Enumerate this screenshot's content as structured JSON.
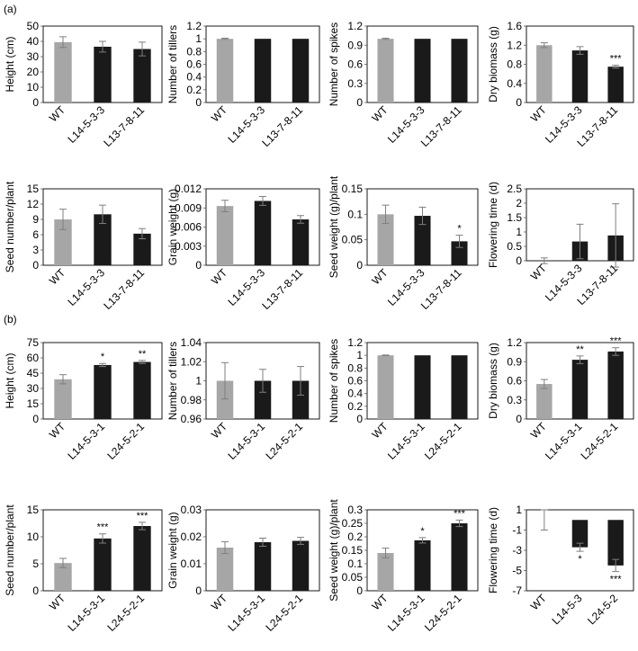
{
  "sections": [
    {
      "label": "(a)"
    },
    {
      "label": "(b)"
    }
  ],
  "colors": {
    "wt": "#a6a6a6",
    "line": "#1a1a1a",
    "axis": "#595959",
    "frame": "#000000",
    "error": "#7f7f7f"
  },
  "chart_data": [
    {
      "id": "a1",
      "type": "bar",
      "categories": [
        "WT",
        "L14-5-3-3",
        "L13-7-8-11"
      ],
      "values": [
        39.5,
        36.5,
        35
      ],
      "errors": [
        3.5,
        3.5,
        4.5
      ],
      "significance": [
        "",
        "",
        ""
      ],
      "ylabel": "Height (cm)",
      "ylim": [
        0,
        50
      ],
      "yticks": [
        "0",
        "10",
        "20",
        "30",
        "40",
        "50"
      ]
    },
    {
      "id": "a2",
      "type": "bar",
      "categories": [
        "WT",
        "L14-5-3-3",
        "L13-7-8-11"
      ],
      "values": [
        1,
        1,
        1
      ],
      "errors": [
        0.01,
        0,
        0
      ],
      "significance": [
        "",
        "",
        ""
      ],
      "ylabel": "Number of tillers",
      "ylim": [
        0,
        1.2
      ],
      "yticks": [
        "0",
        "0.2",
        "0.4",
        "0.6",
        "0.8",
        "1",
        "1.2"
      ]
    },
    {
      "id": "a3",
      "type": "bar",
      "categories": [
        "WT",
        "L14-5-3-3",
        "L13-7-8-11"
      ],
      "values": [
        1,
        1,
        1
      ],
      "errors": [
        0.01,
        0,
        0
      ],
      "significance": [
        "",
        "",
        ""
      ],
      "ylabel": "Number of spikes",
      "ylim": [
        0,
        1.2
      ],
      "yticks": [
        "0",
        "0.3",
        "0.6",
        "0.9",
        "1.2"
      ]
    },
    {
      "id": "a4",
      "type": "bar",
      "categories": [
        "WT",
        "L14-5-3-3",
        "L13-7-8-11"
      ],
      "values": [
        1.2,
        1.09,
        0.75
      ],
      "errors": [
        0.05,
        0.08,
        0.03
      ],
      "significance": [
        "",
        "",
        "***"
      ],
      "ylabel": "Dry biomass (g)",
      "ylim": [
        0,
        1.6
      ],
      "yticks": [
        "0",
        "0.4",
        "0.8",
        "1.2",
        "1.6"
      ]
    },
    {
      "id": "a5",
      "type": "bar",
      "categories": [
        "WT",
        "L14-5-3-3",
        "L13-7-8-11"
      ],
      "values": [
        9,
        10,
        6.2
      ],
      "errors": [
        2.0,
        1.8,
        1.0
      ],
      "significance": [
        "",
        "",
        ""
      ],
      "ylabel": "Seed number/plant",
      "ylim": [
        0,
        15
      ],
      "yticks": [
        "0",
        "3",
        "6",
        "9",
        "12",
        "15"
      ]
    },
    {
      "id": "a6",
      "type": "bar",
      "categories": [
        "WT",
        "L14-5-3-3",
        "L13-7-8-11"
      ],
      "values": [
        0.0093,
        0.0101,
        0.0072
      ],
      "errors": [
        0.0009,
        0.0007,
        0.0006
      ],
      "significance": [
        "",
        "",
        ""
      ],
      "ylabel": "Grain weight (g)",
      "ylim": [
        0,
        0.012
      ],
      "yticks": [
        "0",
        "0.003",
        "0.006",
        "0.009",
        "0.012"
      ]
    },
    {
      "id": "a7",
      "type": "bar",
      "categories": [
        "WT",
        "L14-5-3-3",
        "L13-7-8-11"
      ],
      "values": [
        0.1,
        0.097,
        0.047
      ],
      "errors": [
        0.018,
        0.017,
        0.012
      ],
      "significance": [
        "",
        "",
        "*"
      ],
      "ylabel": "Seed weight (g)/plant",
      "ylim": [
        0,
        0.15
      ],
      "yticks": [
        "0",
        "0.05",
        "0.1",
        "0.15"
      ]
    },
    {
      "id": "a8",
      "type": "bar",
      "categories": [
        "WT",
        "L14-5-3-3",
        "L13-7-8-11"
      ],
      "values": [
        0.0,
        0.67,
        0.88
      ],
      "errors": [
        0.1,
        0.6,
        1.1
      ],
      "significance": [
        "",
        "",
        ""
      ],
      "ylabel": "Flowering time (d)",
      "ylim": [
        0,
        2.5
      ],
      "yticks": [
        "0",
        "0.5",
        "1",
        "1.5",
        "2",
        "2.5"
      ]
    },
    {
      "id": "b1",
      "type": "bar",
      "categories": [
        "WT",
        "L14-5-3-1",
        "L24-5-2-1"
      ],
      "values": [
        39,
        53,
        56
      ],
      "errors": [
        4.5,
        1.5,
        1.5
      ],
      "significance": [
        "",
        "*",
        "**"
      ],
      "ylabel": "Height (cm)",
      "ylim": [
        0,
        75
      ],
      "yticks": [
        "0",
        "15",
        "30",
        "45",
        "60",
        "75"
      ]
    },
    {
      "id": "b2",
      "type": "bar",
      "categories": [
        "WT",
        "L14-5-3-1",
        "L24-5-2-1"
      ],
      "values": [
        1,
        1,
        1
      ],
      "errors": [
        0.019,
        0.012,
        0.015
      ],
      "significance": [
        "",
        "",
        ""
      ],
      "ylabel": "Number of tillers",
      "ylim": [
        0.96,
        1.04
      ],
      "yticks": [
        "0.96",
        "0.98",
        "1",
        "1.02",
        "1.04"
      ]
    },
    {
      "id": "b3",
      "type": "bar",
      "categories": [
        "WT",
        "L14-5-3-1",
        "L24-5-2-1"
      ],
      "values": [
        1,
        1,
        1
      ],
      "errors": [
        0.005,
        0,
        0
      ],
      "significance": [
        "",
        "",
        ""
      ],
      "ylabel": "Number of spikes",
      "ylim": [
        0,
        1.2
      ],
      "yticks": [
        "0",
        "0.2",
        "0.4",
        "0.6",
        "0.8",
        "1",
        "1.2"
      ]
    },
    {
      "id": "b4",
      "type": "bar",
      "categories": [
        "WT",
        "L14-5-3-1",
        "L24-5-2-1"
      ],
      "values": [
        0.55,
        0.93,
        1.06
      ],
      "errors": [
        0.07,
        0.06,
        0.06
      ],
      "significance": [
        "",
        "**",
        "***"
      ],
      "ylabel": "Dry biomass (g)",
      "ylim": [
        0,
        1.2
      ],
      "yticks": [
        "0",
        "0.3",
        "0.6",
        "0.9",
        "1.2"
      ]
    },
    {
      "id": "b5",
      "type": "bar",
      "categories": [
        "WT",
        "L14-5-3-1",
        "L24-5-2-1"
      ],
      "values": [
        6,
        11.3,
        14
      ],
      "errors": [
        1.0,
        1.0,
        0.8
      ],
      "significance": [
        "",
        "***",
        "***"
      ],
      "ylabel": "Seed number/plant",
      "ylim": [
        0,
        17.5
      ],
      "yticks": [
        "0",
        "5",
        "10",
        "15"
      ]
    },
    {
      "id": "b6",
      "type": "bar",
      "categories": [
        "WT",
        "L14-5-3-1",
        "L24-5-2-1"
      ],
      "values": [
        0.016,
        0.018,
        0.0185
      ],
      "errors": [
        0.0022,
        0.0015,
        0.0013
      ],
      "significance": [
        "",
        "",
        ""
      ],
      "ylabel": "Grain weight (g)",
      "ylim": [
        0,
        0.03
      ],
      "yticks": [
        "0",
        "0.01",
        "0.02",
        "0.03"
      ]
    },
    {
      "id": "b7",
      "type": "bar",
      "categories": [
        "WT",
        "L14-5-3-1",
        "L24-5-2-1"
      ],
      "values": [
        0.14,
        0.187,
        0.25
      ],
      "errors": [
        0.018,
        0.01,
        0.012
      ],
      "significance": [
        "",
        "*",
        "***"
      ],
      "ylabel": "Seed weight (g)/plant",
      "ylim": [
        0,
        0.3
      ],
      "yticks": [
        "0",
        "0.05",
        "0.1",
        "0.15",
        "0.2",
        "0.25",
        "0.3"
      ]
    },
    {
      "id": "b8",
      "type": "bar",
      "categories": [
        "WT",
        "L14-5-3",
        "L24-5-2"
      ],
      "values": [
        0,
        -2.7,
        -4.5
      ],
      "errors": [
        1.0,
        0.4,
        0.6
      ],
      "significance": [
        "",
        "*",
        "***"
      ],
      "ylabel": "Flowering time (d)",
      "ylim": [
        -7,
        1
      ],
      "yticks": [
        "-7",
        "-5",
        "-3",
        "-1",
        "1"
      ]
    }
  ]
}
